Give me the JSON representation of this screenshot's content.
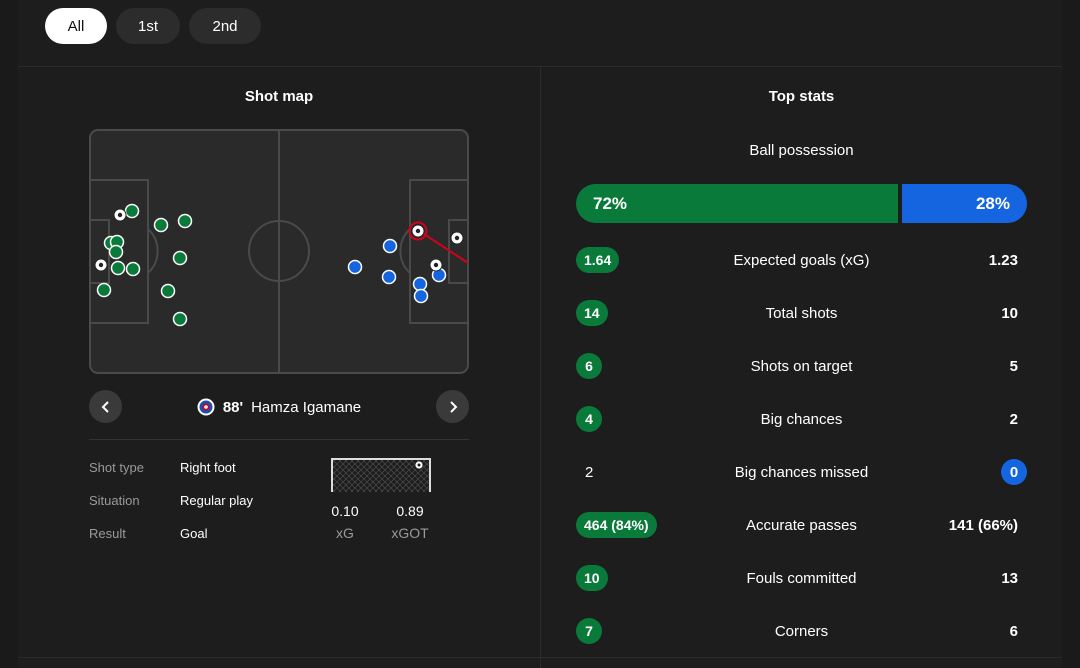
{
  "tabs": [
    {
      "label": "All",
      "active": true
    },
    {
      "label": "1st",
      "active": false
    },
    {
      "label": "2nd",
      "active": false
    }
  ],
  "shot_map": {
    "title": "Shot map",
    "selected_shot": {
      "minute": "88'",
      "player": "Hamza Igamane",
      "team_badge_icon": "rangers-badge-icon",
      "details": [
        {
          "label": "Shot type",
          "value": "Right foot"
        },
        {
          "label": "Situation",
          "value": "Regular play"
        },
        {
          "label": "Result",
          "value": "Goal"
        }
      ],
      "xg": {
        "value": "0.10",
        "label": "xG"
      },
      "xgot": {
        "value": "0.89",
        "label": "xGOT"
      }
    },
    "colors": {
      "home": "#0a7a3a",
      "away": "#1565e0",
      "selected": "#d0021b",
      "pitch": "#2a2a2a",
      "lines": "#4a4a4a"
    }
  },
  "top_stats": {
    "title": "Top stats",
    "possession": {
      "label": "Ball possession",
      "home": "72%",
      "away": "28%",
      "home_fraction": 0.72
    },
    "rows": [
      {
        "label": "Expected goals (xG)",
        "home": "1.64",
        "away": "1.23",
        "highlight": "home"
      },
      {
        "label": "Total shots",
        "home": "14",
        "away": "10",
        "highlight": "home"
      },
      {
        "label": "Shots on target",
        "home": "6",
        "away": "5",
        "highlight": "home"
      },
      {
        "label": "Big chances",
        "home": "4",
        "away": "2",
        "highlight": "home"
      },
      {
        "label": "Big chances missed",
        "home": "2",
        "away": "0",
        "highlight": "away"
      },
      {
        "label": "Accurate passes",
        "home": "464 (84%)",
        "away": "141 (66%)",
        "highlight": "home"
      },
      {
        "label": "Fouls committed",
        "home": "10",
        "away": "13",
        "highlight": "home"
      },
      {
        "label": "Corners",
        "home": "7",
        "away": "6",
        "highlight": "home"
      }
    ]
  }
}
